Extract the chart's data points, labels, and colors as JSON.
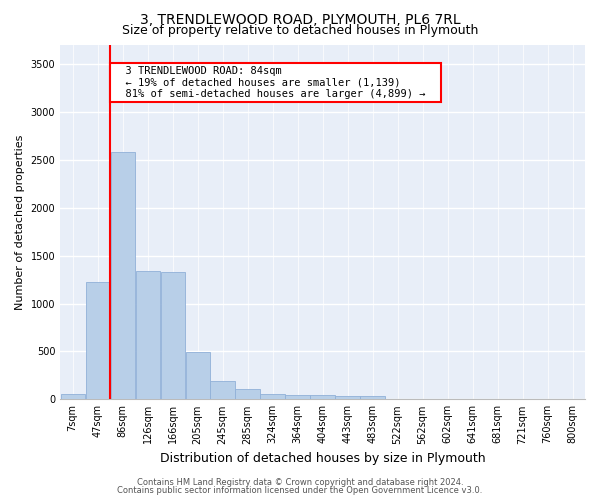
{
  "title": "3, TRENDLEWOOD ROAD, PLYMOUTH, PL6 7RL",
  "subtitle": "Size of property relative to detached houses in Plymouth",
  "xlabel": "Distribution of detached houses by size in Plymouth",
  "ylabel": "Number of detached properties",
  "bar_labels": [
    "7sqm",
    "47sqm",
    "86sqm",
    "126sqm",
    "166sqm",
    "205sqm",
    "245sqm",
    "285sqm",
    "324sqm",
    "364sqm",
    "404sqm",
    "443sqm",
    "483sqm",
    "522sqm",
    "562sqm",
    "602sqm",
    "641sqm",
    "681sqm",
    "721sqm",
    "760sqm",
    "800sqm"
  ],
  "bar_values": [
    55,
    1220,
    2580,
    1335,
    1330,
    495,
    195,
    110,
    55,
    50,
    40,
    35,
    35,
    0,
    0,
    0,
    0,
    0,
    0,
    0,
    0
  ],
  "bar_color": "#b8cfe8",
  "bar_edge_color": "#90b0d8",
  "background_color": "#e8eef8",
  "ylim": [
    0,
    3700
  ],
  "yticks": [
    0,
    500,
    1000,
    1500,
    2000,
    2500,
    3000,
    3500
  ],
  "property_line_label": "3 TRENDLEWOOD ROAD: 84sqm",
  "annotation_line1": "← 19% of detached houses are smaller (1,139)",
  "annotation_line2": "81% of semi-detached houses are larger (4,899) →",
  "footer_line1": "Contains HM Land Registry data © Crown copyright and database right 2024.",
  "footer_line2": "Contains public sector information licensed under the Open Government Licence v3.0.",
  "title_fontsize": 10,
  "subtitle_fontsize": 9,
  "axis_label_fontsize": 8,
  "tick_fontsize": 7,
  "annotation_fontsize": 7.5,
  "footer_fontsize": 6
}
